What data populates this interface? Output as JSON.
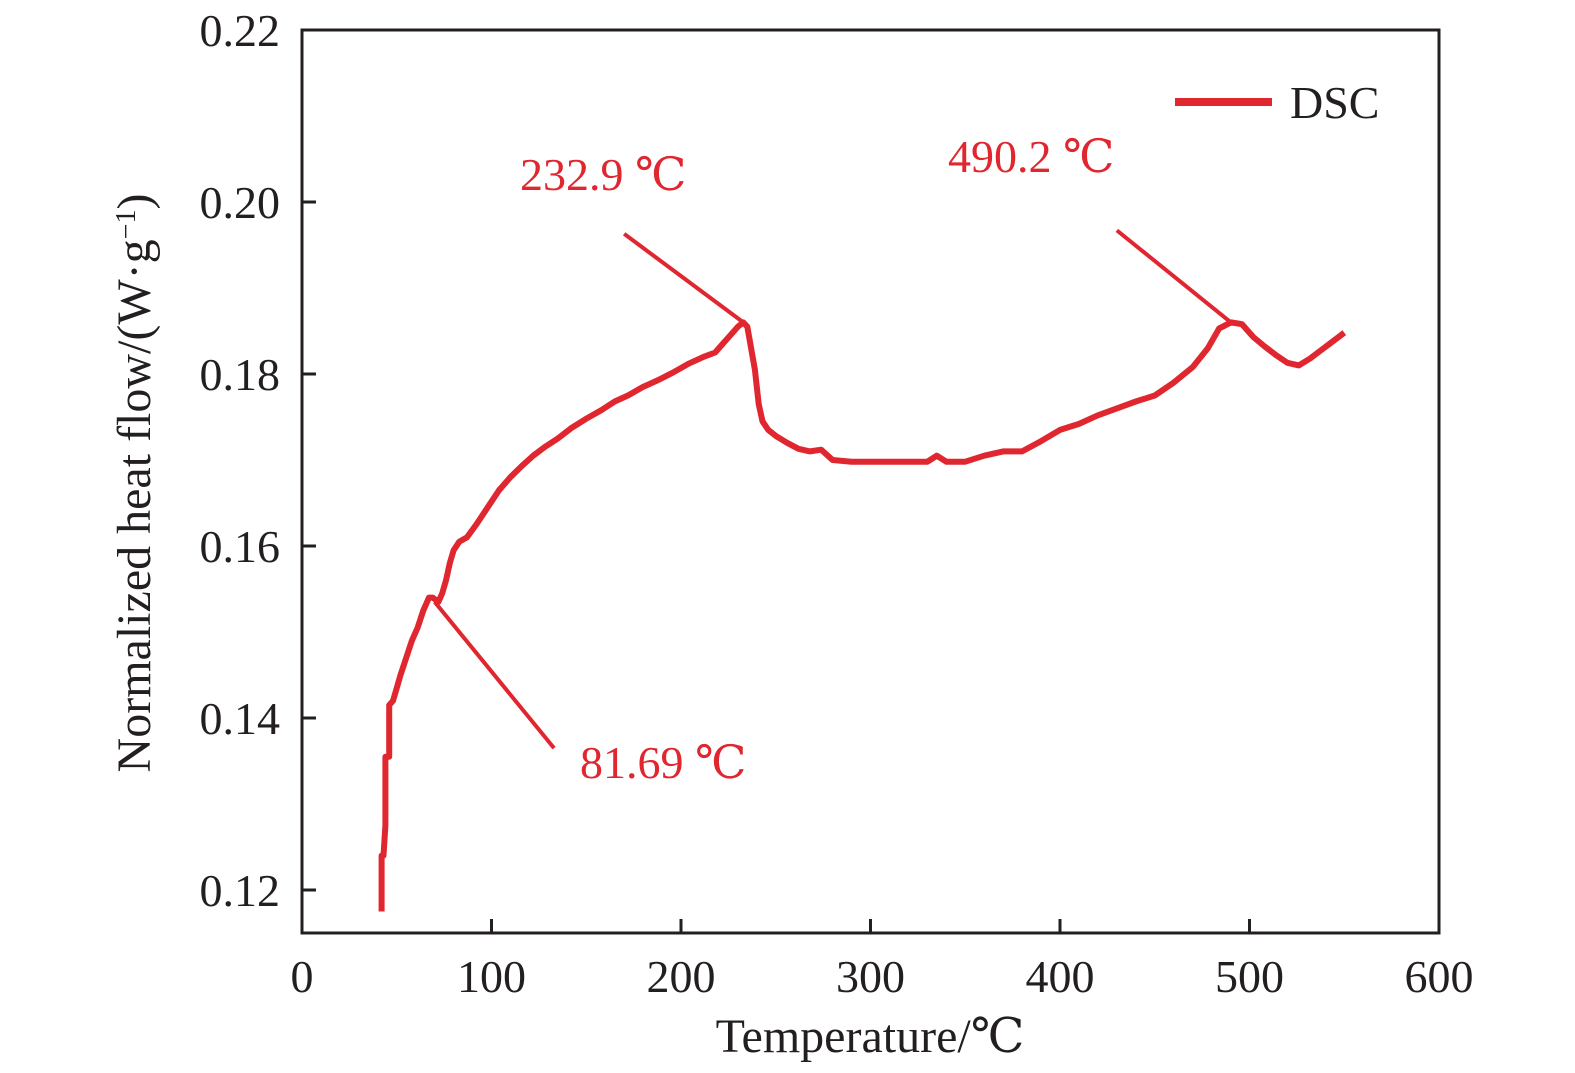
{
  "chart_data": {
    "type": "line",
    "xlabel": "Temperature/℃",
    "ylabel": "Normalized heat flow/(W·g",
    "ylabel_sup": "−1",
    "ylabel_end": ")",
    "xlim": [
      0,
      600
    ],
    "ylim": [
      0.115,
      0.22
    ],
    "xticks": [
      0,
      100,
      200,
      300,
      400,
      500,
      600
    ],
    "xtick_labels": [
      "0",
      "100",
      "200",
      "300",
      "400",
      "500",
      "600"
    ],
    "yticks": [
      0.12,
      0.14,
      0.16,
      0.18,
      0.2,
      0.22
    ],
    "ytick_labels": [
      "0.12",
      "0.14",
      "0.16",
      "0.18",
      "0.20",
      "0.22"
    ],
    "grid": false,
    "legend_position": "top-right",
    "series": [
      {
        "name": "DSC",
        "color": "#e0262f",
        "x": [
          42,
          42,
          43,
          44,
          44,
          46,
          46,
          48,
          50,
          52,
          55,
          58,
          61,
          64,
          67,
          69,
          72,
          74,
          76,
          78,
          80,
          83,
          87,
          92,
          98,
          104,
          110,
          116,
          122,
          128,
          135,
          142,
          150,
          158,
          165,
          172,
          180,
          188,
          196,
          204,
          212,
          218,
          222,
          226,
          230,
          232.9,
          235,
          237,
          239,
          240,
          241,
          243,
          246,
          250,
          256,
          262,
          268,
          274,
          280,
          290,
          300,
          310,
          320,
          330,
          335,
          340,
          350,
          360,
          370,
          380,
          390,
          400,
          410,
          420,
          430,
          440,
          450,
          460,
          470,
          478,
          484,
          490.2,
          496,
          502,
          508,
          514,
          520,
          526,
          532,
          538,
          544,
          550
        ],
        "y": [
          0.1175,
          0.124,
          0.124,
          0.1275,
          0.1355,
          0.1355,
          0.1415,
          0.142,
          0.1435,
          0.145,
          0.147,
          0.149,
          0.1505,
          0.1525,
          0.154,
          0.154,
          0.1535,
          0.1545,
          0.156,
          0.158,
          0.1595,
          0.1605,
          0.161,
          0.1625,
          0.1645,
          0.1665,
          0.168,
          0.1693,
          0.1705,
          0.1715,
          0.1725,
          0.1737,
          0.1748,
          0.1758,
          0.1768,
          0.1775,
          0.1785,
          0.1793,
          0.1802,
          0.1812,
          0.182,
          0.1825,
          0.1835,
          0.1845,
          0.1855,
          0.186,
          0.1855,
          0.183,
          0.1805,
          0.1785,
          0.1765,
          0.1745,
          0.1735,
          0.1728,
          0.172,
          0.1713,
          0.171,
          0.1712,
          0.17,
          0.1698,
          0.1698,
          0.1698,
          0.1698,
          0.1698,
          0.1705,
          0.1698,
          0.1698,
          0.1705,
          0.171,
          0.171,
          0.1722,
          0.1735,
          0.1742,
          0.1752,
          0.176,
          0.1768,
          0.1775,
          0.179,
          0.1808,
          0.183,
          0.1853,
          0.186,
          0.1858,
          0.1843,
          0.1832,
          0.1822,
          0.1813,
          0.181,
          0.1818,
          0.1828,
          0.1838,
          0.1848
        ]
      }
    ],
    "annotations": [
      {
        "text": "81.69 ℃",
        "point": [
          70,
          0.1535
        ],
        "label": [
          133,
          0.1365
        ]
      },
      {
        "text": "232.9 ℃",
        "point": [
          232.9,
          0.186
        ],
        "label": [
          170,
          0.1963
        ]
      },
      {
        "text": "490.2 ℃",
        "point": [
          490.2,
          0.186
        ],
        "label": [
          430,
          0.1967
        ]
      }
    ]
  }
}
